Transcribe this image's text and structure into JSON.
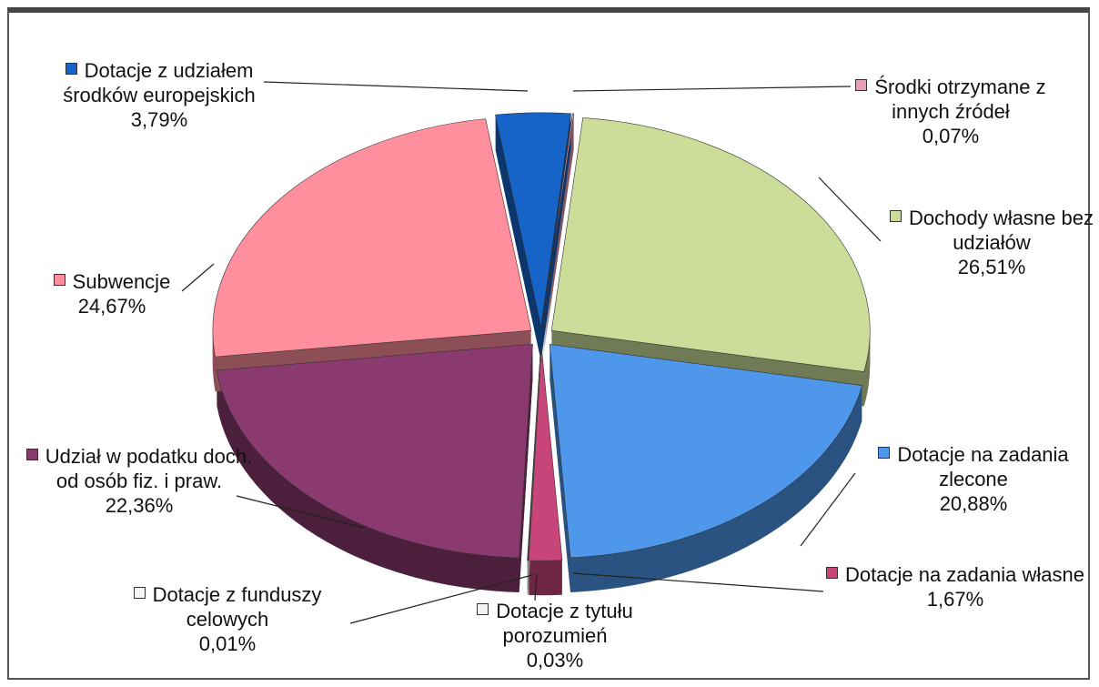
{
  "chart_data": {
    "type": "pie",
    "categories": [
      "Środki otrzymane z innych źródeł",
      "Dochody własne bez udziałów",
      "Dotacje na zadania zlecone",
      "Dotacje na zadania własne",
      "Dotacje z tytułu porozumień",
      "Dotacje z funduszy celowych",
      "Udział w podatku doch. od osób fiz. i praw.",
      "Subwencje",
      "Dotacje z udziałem środków europejskich"
    ],
    "values": [
      0.07,
      26.51,
      20.88,
      1.67,
      0.03,
      0.01,
      22.36,
      24.67,
      3.79
    ],
    "value_labels": [
      "0,07%",
      "26,51%",
      "20,88%",
      "1,67%",
      "0,03%",
      "0,01%",
      "22,36%",
      "24,67%",
      "3,79%"
    ],
    "colors": [
      "#e8a0b4",
      "#ccdd99",
      "#4f97ea",
      "#c8457a",
      "#f2f2f2",
      "#f5f5f5",
      "#8a3a6e",
      "#ff8f9c",
      "#1664c8"
    ]
  }
}
